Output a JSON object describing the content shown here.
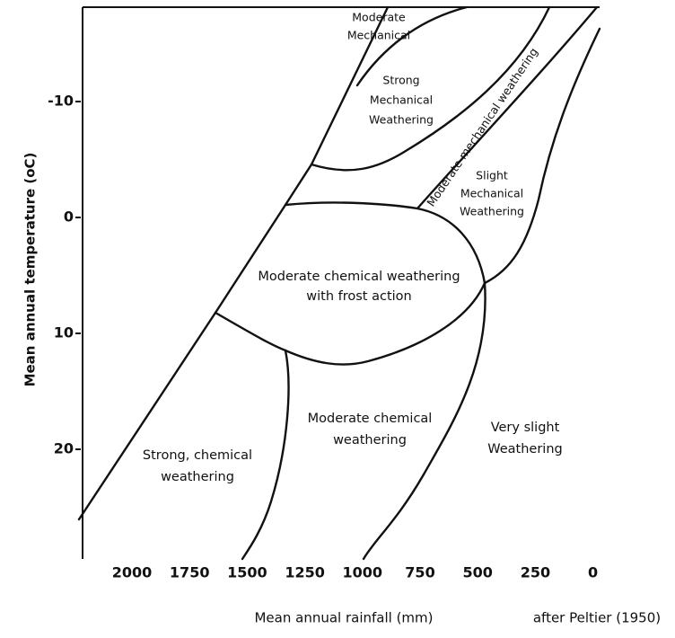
{
  "x_axis": {
    "label": "Mean annual rainfall (mm)",
    "ticks": [
      "2000",
      "1750",
      "1500",
      "1250",
      "1000",
      "750",
      "500",
      "250",
      "0"
    ]
  },
  "y_axis": {
    "label": "Mean annual temperature (oC)",
    "ticks": [
      "-10",
      "0",
      "10",
      "20"
    ]
  },
  "regions": [
    {
      "lines": [
        "Moderate",
        "Mechanical"
      ]
    },
    {
      "lines": [
        "Strong",
        "Mechanical",
        "Weathering"
      ]
    },
    {
      "lines": [
        "Moderate mechanical weathering"
      ]
    },
    {
      "lines": [
        "Slight",
        "Mechanical",
        "Weathering"
      ]
    },
    {
      "lines": [
        "Moderate chemical weathering",
        "with frost action"
      ]
    },
    {
      "lines": [
        "Strong, chemical",
        "weathering"
      ]
    },
    {
      "lines": [
        "Moderate chemical",
        "weathering"
      ]
    },
    {
      "lines": [
        "Very slight",
        "Weathering"
      ]
    }
  ],
  "credit": "after Peltier (1950)"
}
